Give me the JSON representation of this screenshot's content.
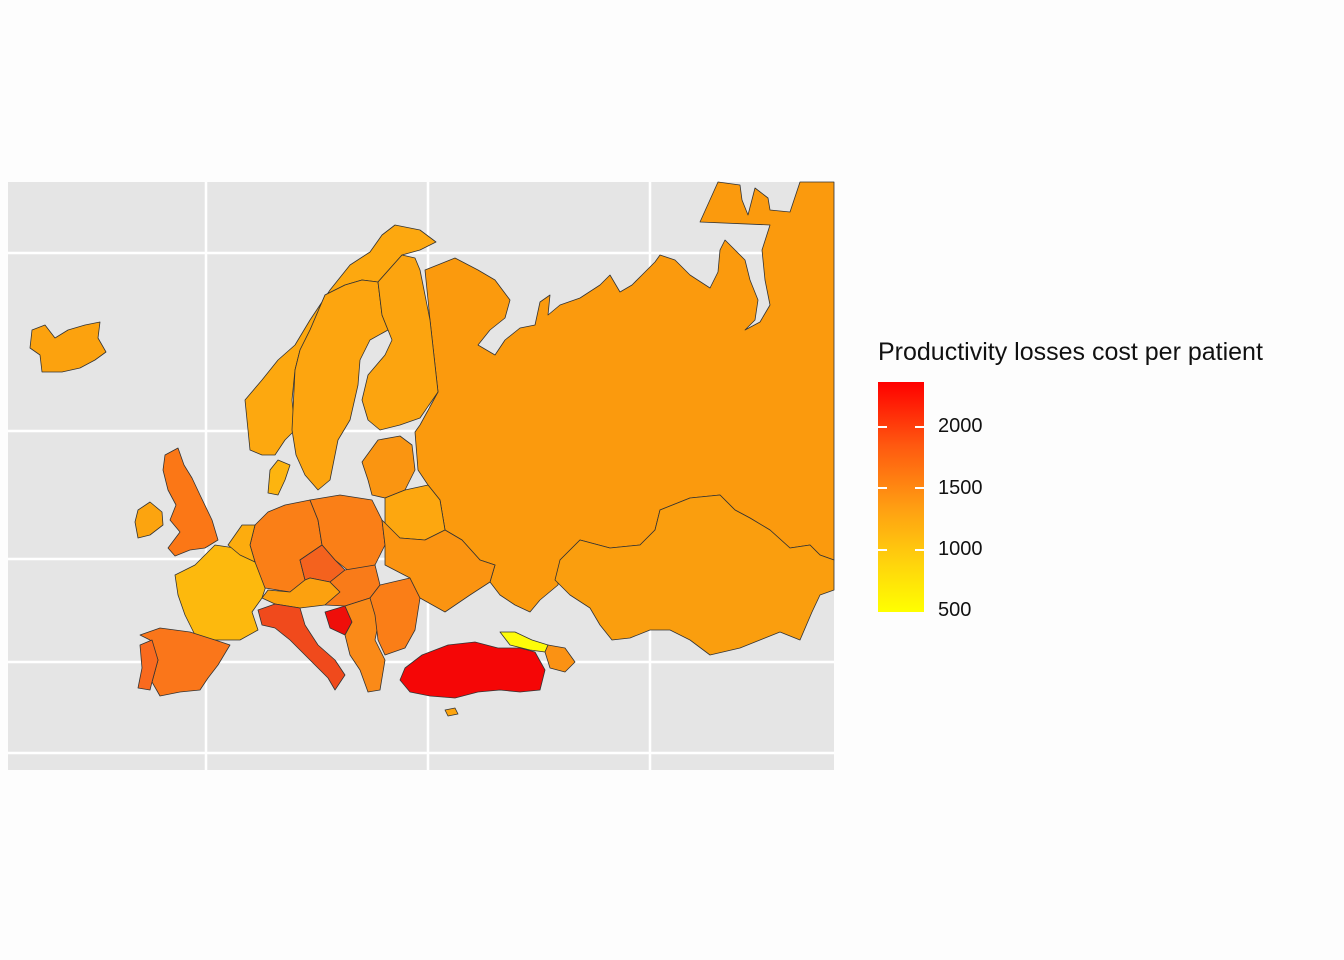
{
  "legend": {
    "title": "Productivity losses cost per patient",
    "ticks": [
      "2000",
      "1500",
      "1000",
      "500"
    ],
    "range": [
      500,
      2350
    ],
    "colors": [
      "#ffff00",
      "#ff0000"
    ]
  },
  "map": {
    "type": "choropleth",
    "region": "Europe",
    "background": "#e5e5e5",
    "gridlines": true,
    "regions": [
      {
        "id": "iceland",
        "value": 1250
      },
      {
        "id": "norway",
        "value": 1280
      },
      {
        "id": "sweden",
        "value": 1300
      },
      {
        "id": "finland",
        "value": 1350
      },
      {
        "id": "russia",
        "value": 1400
      },
      {
        "id": "kazakhstan",
        "value": 1420
      },
      {
        "id": "uk",
        "value": 1650
      },
      {
        "id": "ireland",
        "value": 1350
      },
      {
        "id": "france",
        "value": 1100
      },
      {
        "id": "spain",
        "value": 1650
      },
      {
        "id": "portugal",
        "value": 1700
      },
      {
        "id": "germany",
        "value": 1600
      },
      {
        "id": "poland",
        "value": 1620
      },
      {
        "id": "czechia",
        "value": 1850
      },
      {
        "id": "italy",
        "value": 1950
      },
      {
        "id": "bosnia",
        "value": 2300
      },
      {
        "id": "turkey",
        "value": 2350
      },
      {
        "id": "georgia",
        "value": 500
      },
      {
        "id": "ukraine",
        "value": 1450
      },
      {
        "id": "belarus",
        "value": 1350
      },
      {
        "id": "baltics",
        "value": 1500
      },
      {
        "id": "romania",
        "value": 1650
      },
      {
        "id": "austria",
        "value": 1400
      },
      {
        "id": "denmark",
        "value": 1150
      }
    ]
  }
}
